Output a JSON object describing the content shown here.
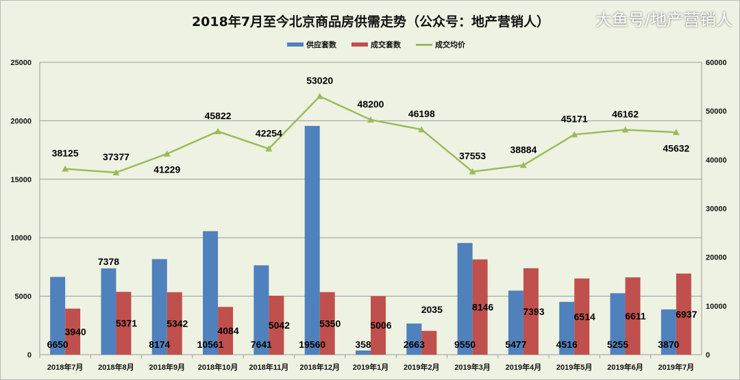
{
  "chart_data": {
    "type": "bar+line",
    "title": "2018年7月至今北京商品房供需走势（公众号：地产营销人）",
    "categories": [
      "2018年7月",
      "2018年8月",
      "2018年9月",
      "2018年10月",
      "2018年11月",
      "2018年12月",
      "2019年1月",
      "2019年2月",
      "2019年3月",
      "2019年4月",
      "2019年5月",
      "2019年6月",
      "2019年7月"
    ],
    "series": [
      {
        "name": "供应套数",
        "type": "bar",
        "axis": "left",
        "color": "#4f81bd",
        "values": [
          6650,
          7378,
          8174,
          10561,
          7641,
          19560,
          358,
          2663,
          9550,
          5477,
          4516,
          5255,
          3870
        ]
      },
      {
        "name": "成交套数",
        "type": "bar",
        "axis": "left",
        "color": "#c0504d",
        "values": [
          3940,
          5371,
          5342,
          4084,
          5042,
          5350,
          5006,
          2035,
          8146,
          7393,
          6514,
          6611,
          6937
        ]
      },
      {
        "name": "成交均价",
        "type": "line",
        "axis": "right",
        "color": "#9bbb59",
        "values": [
          38125,
          37377,
          41229,
          45822,
          42254,
          53020,
          48200,
          46198,
          37553,
          38884,
          45171,
          46162,
          45632
        ]
      }
    ],
    "ylim_left": [
      0,
      25000
    ],
    "yticks_left": [
      0,
      5000,
      10000,
      15000,
      20000,
      25000
    ],
    "ylim_right": [
      0,
      60000
    ],
    "yticks_right": [
      0,
      10000,
      20000,
      30000,
      40000,
      50000,
      60000
    ],
    "grid": true,
    "legend": "top"
  },
  "watermark": "大鱼号/地产营销人"
}
